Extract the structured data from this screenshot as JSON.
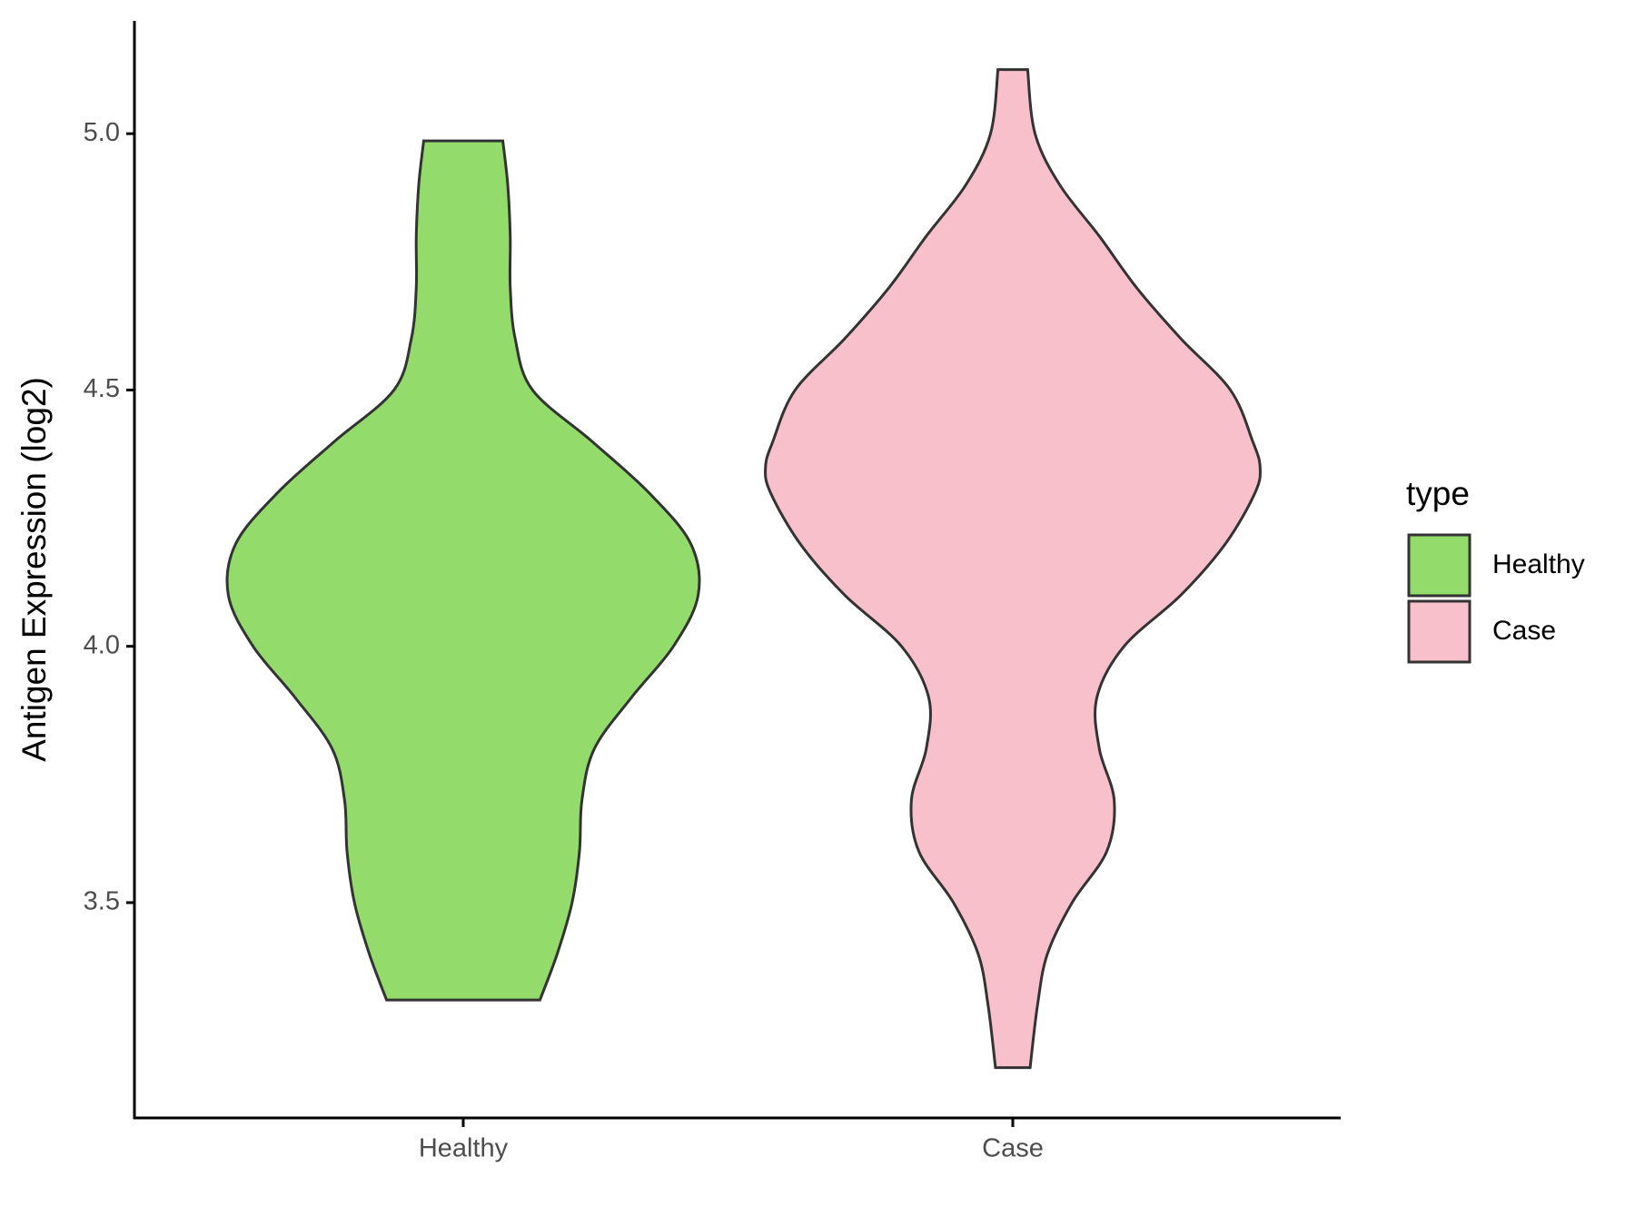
{
  "chart_data": {
    "type": "violin",
    "ylabel": "Antigen Expression (log2)",
    "categories": [
      "Healthy",
      "Case"
    ],
    "legend_title": "type",
    "legend": "right",
    "ylim": [
      3.08,
      5.22
    ],
    "yticks": [
      {
        "value": 3.5,
        "label": "3.5"
      },
      {
        "value": 4,
        "label": "4.0"
      },
      {
        "value": 4.5,
        "label": "4.5"
      },
      {
        "value": 5,
        "label": "5.0"
      }
    ],
    "series": [
      {
        "name": "Healthy",
        "color": "#93dc6b",
        "y": [
          4.986,
          4.9,
          4.8,
          4.7,
          4.6,
          4.5,
          4.4,
          4.3,
          4.2,
          4.1,
          4.0,
          3.9,
          3.8,
          3.7,
          3.6,
          3.5,
          3.4,
          3.31
        ],
        "density": [
          0.16,
          0.18,
          0.19,
          0.19,
          0.21,
          0.28,
          0.52,
          0.75,
          0.92,
          0.95,
          0.85,
          0.68,
          0.53,
          0.48,
          0.47,
          0.44,
          0.38,
          0.31
        ]
      },
      {
        "name": "Case",
        "color": "#f7c0cb",
        "y": [
          5.125,
          5.0,
          4.9,
          4.8,
          4.7,
          4.6,
          4.5,
          4.4,
          4.35,
          4.3,
          4.2,
          4.1,
          4.0,
          3.9,
          3.8,
          3.7,
          3.6,
          3.5,
          3.4,
          3.3,
          3.178
        ],
        "density": [
          0.06,
          0.09,
          0.19,
          0.35,
          0.5,
          0.68,
          0.88,
          0.97,
          1.0,
          0.98,
          0.86,
          0.68,
          0.45,
          0.34,
          0.35,
          0.41,
          0.38,
          0.24,
          0.14,
          0.1,
          0.07
        ]
      }
    ]
  }
}
